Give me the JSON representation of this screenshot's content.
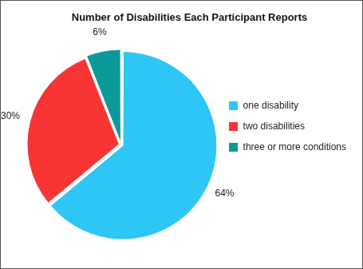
{
  "chart_data": {
    "type": "pie",
    "title": "Number of Disabilities Each Participant Reports",
    "categories": [
      "one disability",
      "two disabilities",
      "three or more conditions"
    ],
    "values": [
      64,
      30,
      6
    ],
    "value_labels": [
      "64%",
      "30%",
      "6%"
    ],
    "colors": [
      "#2ec6f4",
      "#f73535",
      "#0b9a98"
    ],
    "legend": "right",
    "data_labels": true
  }
}
